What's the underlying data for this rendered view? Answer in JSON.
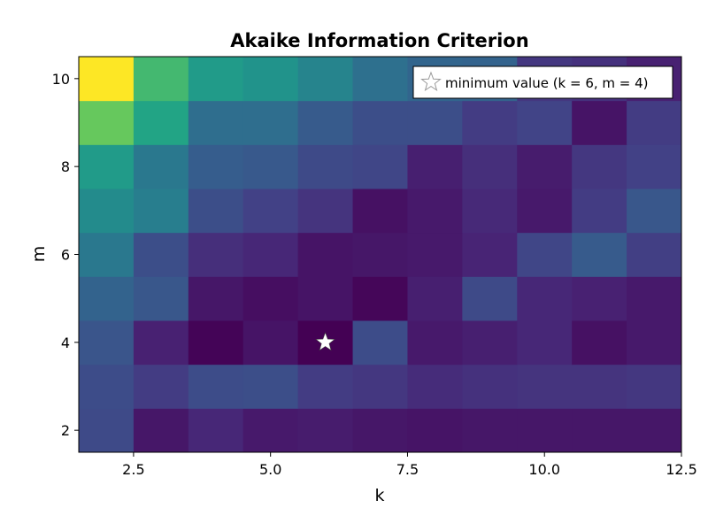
{
  "chart_data": {
    "type": "heatmap",
    "title": "Akaike Information Criterion",
    "xlabel": "k",
    "ylabel": "m",
    "x": [
      2,
      3,
      4,
      5,
      6,
      7,
      8,
      9,
      10,
      11,
      12
    ],
    "y": [
      2,
      3,
      4,
      5,
      6,
      7,
      8,
      9,
      10
    ],
    "xlim": [
      1.5,
      12.5
    ],
    "ylim": [
      1.5,
      10.5
    ],
    "xticks": [
      "2.5",
      "5.0",
      "7.5",
      "10.0",
      "12.5"
    ],
    "yticks": [
      "2",
      "4",
      "6",
      "8",
      "10"
    ],
    "colormap": "viridis",
    "legend_position": "top-right",
    "values": [
      [
        0.28,
        0.08,
        0.14,
        0.09,
        0.1,
        0.08,
        0.07,
        0.08,
        0.08,
        0.08,
        0.08
      ],
      [
        0.29,
        0.22,
        0.29,
        0.3,
        0.22,
        0.2,
        0.16,
        0.18,
        0.19,
        0.19,
        0.2
      ],
      [
        0.33,
        0.12,
        0.01,
        0.07,
        0.0,
        0.29,
        0.09,
        0.11,
        0.14,
        0.06,
        0.09
      ],
      [
        0.4,
        0.34,
        0.08,
        0.05,
        0.07,
        0.02,
        0.11,
        0.28,
        0.14,
        0.12,
        0.09
      ],
      [
        0.5,
        0.3,
        0.17,
        0.14,
        0.07,
        0.08,
        0.09,
        0.13,
        0.26,
        0.36,
        0.23
      ],
      [
        0.6,
        0.53,
        0.3,
        0.24,
        0.19,
        0.06,
        0.09,
        0.15,
        0.09,
        0.22,
        0.34
      ],
      [
        0.68,
        0.5,
        0.37,
        0.35,
        0.28,
        0.26,
        0.11,
        0.17,
        0.1,
        0.2,
        0.24
      ],
      [
        0.85,
        0.73,
        0.45,
        0.45,
        0.36,
        0.3,
        0.3,
        0.22,
        0.25,
        0.07,
        0.22
      ],
      [
        1.0,
        0.8,
        0.68,
        0.64,
        0.56,
        0.46,
        0.41,
        0.4,
        0.2,
        0.18,
        0.12
      ]
    ],
    "minimum": {
      "k": 6,
      "m": 4,
      "label": "minimum value (k = 6, m = 4)"
    }
  },
  "colors": {
    "star_fill": "#ffffff",
    "legend_border": "#000000"
  }
}
